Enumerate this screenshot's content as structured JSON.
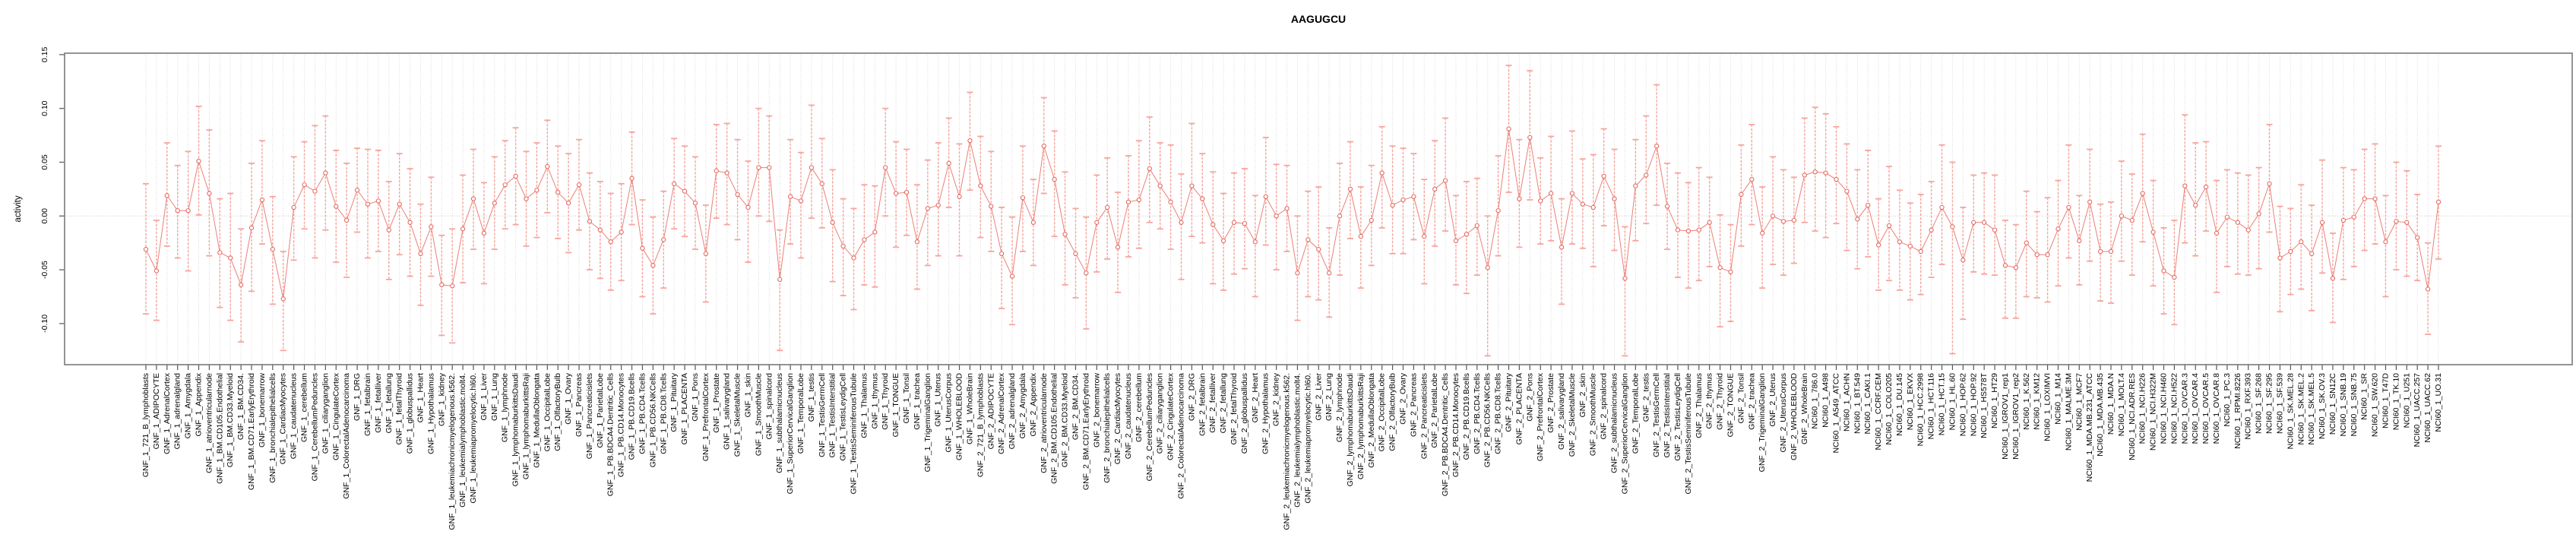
{
  "title": "AAGUGCU",
  "chart_data": {
    "type": "scatter",
    "title": "AAGUGCU",
    "xlabel": "",
    "ylabel": "activity",
    "ylim": [
      -0.138,
      0.152
    ],
    "yticks": [
      0.15,
      0.1,
      0.05,
      0.0,
      -0.05,
      -0.1
    ],
    "ytick_labels": [
      "0.15",
      "0.10",
      "0.05",
      "0.00",
      "-0.05",
      "-0.10"
    ],
    "grid": {
      "vertical_dotted_per_category": true,
      "horizontal_dotted_at_zero": true
    },
    "legend": "none",
    "colors": {
      "point": "#e5695f",
      "line": "#ec7f76",
      "errorbar": "#f7a49c",
      "grid": "#d9d9d9",
      "zero_line": "#c9c9c9",
      "axis": "#7a7a7a",
      "text": "#000000"
    },
    "categories": [
      "GNF_1_721_B_lymphoblasts",
      "GNF_1_ADIPOCYTE",
      "GNF_1_AdrenalCortex",
      "GNF_1_adrenalgland",
      "GNF_1_Amygdala",
      "GNF_1_Appendix",
      "GNF_1_atrioventricularnode",
      "GNF_1_BM.CD105.Endothelial",
      "GNF_1_BM.CD33.Myeloid",
      "GNF_1_BM.CD34.",
      "GNF_1_BM.CD71.EarlyErythroid",
      "GNF_1_bonemarrow",
      "GNF_1_bronchialepithelialcells",
      "GNF_1_CardiacMyocytes",
      "GNF_1_caudatenucleus",
      "GNF_1_cerebellum",
      "GNF_1_CerebellumPeduncles",
      "GNF_1_ciliaryganglion",
      "GNF_1_CingulateCortex",
      "GNF_1_ColorectalAdenocarcinoma",
      "GNF_1_DRG",
      "GNF_1_fetalbrain",
      "GNF_1_fetalliver",
      "GNF_1_fetallung",
      "GNF_1_fetalThyroid",
      "GNF_1_globuspallidus",
      "GNF_1_Heart",
      "GNF_1_Hypothalamus",
      "GNF_1_kidney",
      "GNF_1_leukemiachronicmyelogenous.k562.",
      "GNF_1_leukemialymphoblastic.molt4.",
      "GNF_1_leukemiapromyelocytic.hl60.",
      "GNF_1_Liver",
      "GNF_1_Lung",
      "GNF_1_lymphnode",
      "GNF_1_lymphomaburkittsDaudi",
      "GNF_1_lymphomaburkittsRaji",
      "GNF_1_MedullaOblongata",
      "GNF_1_OccipitalLobe",
      "GNF_1_OlfactoryBulb",
      "GNF_1_Ovary",
      "GNF_1_Pancreas",
      "GNF_1_Pancreaticislets",
      "GNF_1_ParietalLobe",
      "GNF_1_PB.BDCA4.Dentritic_Cells",
      "GNF_1_PB.CD14.Monocytes",
      "GNF_1_PB.CD19.Bcells",
      "GNF_1_PB.CD4.Tcells",
      "GNF_1_PB.CD56.NKCells",
      "GNF_1_PB.CD8.Tcells",
      "GNF_1_Pituitary",
      "GNF_1_PLACENTA",
      "GNF_1_Pons",
      "GNF_1_PrefrontalCortex",
      "GNF_1_Prostate",
      "GNF_1_salivarygland",
      "GNF_1_SkeletalMuscle",
      "GNF_1_skin",
      "GNF_1_SmoothMuscle",
      "GNF_1_spinalcord",
      "GNF_1_subthalamicnucleus",
      "GNF_1_SuperiorCervicalGanglion",
      "GNF_1_TemporalLobe",
      "GNF_1_testis",
      "GNF_1_TestisGermCell",
      "GNF_1_TestisInterstitial",
      "GNF_1_TestisLeydigCell",
      "GNF_1_TestisSeminiferousTubule",
      "GNF_1_Thalamus",
      "GNF_1_thymus",
      "GNF_1_Thyroid",
      "GNF_1_TONGUE",
      "GNF_1_Tonsil",
      "GNF_1_trachea",
      "GNF_1_TrigeminalGanglion",
      "GNF_1_Uterus",
      "GNF_1_UterusCorpus",
      "GNF_1_WHOLEBLOOD",
      "GNF_1_WholeBrain",
      "GNF_2_721_B_lymphoblasts",
      "GNF_2_ADIPOCYTE",
      "GNF_2_AdrenalCortex",
      "GNF_2_adrenalgland",
      "GNF_2_Amygdala",
      "GNF_2_Appendix",
      "GNF_2_atrioventricularnode",
      "GNF_2_BM.CD105.Endothelial",
      "GNF_2_BM.CD33.Myeloid",
      "GNF_2_BM.CD34.",
      "GNF_2_BM.CD71.EarlyErythroid",
      "GNF_2_bonemarrow",
      "GNF_2_bronchialepithelialcells",
      "GNF_2_CardiacMyocytes",
      "GNF_2_caudatenucleus",
      "GNF_2_cerebellum",
      "GNF_2_CerebellumPeduncles",
      "GNF_2_ciliaryganglion",
      "GNF_2_CingulateCortex",
      "GNF_2_ColorectalAdenocarcinoma",
      "GNF_2_DRG",
      "GNF_2_fetalbrain",
      "GNF_2_fetalliver",
      "GNF_2_fetallung",
      "GNF_2_fetalThyroid",
      "GNF_2_globuspallidus",
      "GNF_2_Heart",
      "GNF_2_Hypothalamus",
      "GNF_2_kidney",
      "GNF_2_leukemiachronicmyelogenous.k562.",
      "GNF_2_leukemialymphoblastic.molt4.",
      "GNF_2_leukemiapromyelocytic.hl60.",
      "GNF_2_Liver",
      "GNF_2_Lung",
      "GNF_2_lymphnode",
      "GNF_2_lymphomaburkittsDaudi",
      "GNF_2_lymphomaburkittsRaji",
      "GNF_2_MedullaOblongata",
      "GNF_2_OccipitalLobe",
      "GNF_2_OlfactoryBulb",
      "GNF_2_Ovary",
      "GNF_2_Pancreas",
      "GNF_2_Pancreaticislets",
      "GNF_2_ParietalLobe",
      "GNF_2_PB.BDCA4.Dentritic_Cells",
      "GNF_2_PB.CD14.Monocytes",
      "GNF_2_PB.CD19.Bcells",
      "GNF_2_PB.CD4.Tcells",
      "GNF_2_PB.CD56.NKCells",
      "GNF_2_PB.CD8.Tcells",
      "GNF_2_Pituitary",
      "GNF_2_PLACENTA",
      "GNF_2_Pons",
      "GNF_2_PrefrontalCortex",
      "GNF_2_Prostate",
      "GNF_2_salivarygland",
      "GNF_2_SkeletalMuscle",
      "GNF_2_skin",
      "GNF_2_SmoothMuscle",
      "GNF_2_spinalcord",
      "GNF_2_subthalamicnucleus",
      "GNF_2_SuperiorCervicalGanglion",
      "GNF_2_TemporalLobe",
      "GNF_2_testis",
      "GNF_2_TestisGermCell",
      "GNF_2_TestisInterstitial",
      "GNF_2_TestisLeydigCell",
      "GNF_2_TestisSeminiferousTubule",
      "GNF_2_Thalamus",
      "GNF_2_thymus",
      "GNF_2_Thyroid",
      "GNF_2_TONGUE",
      "GNF_2_Tonsil",
      "GNF_2_trachea",
      "GNF_2_TrigeminalGanglion",
      "GNF_2_Uterus",
      "GNF_2_UterusCorpus",
      "GNF_2_WHOLEBLOOD",
      "GNF_2_WholeBrain",
      "NCI60_1_786.0",
      "NCI60_1_A498",
      "NCI60_1_A549_ATCC",
      "NCI60_1_ACHN",
      "NCI60_1_BT.549",
      "NCI60_1_CAKI.1",
      "NCI60_1_CCRF.CEM",
      "NCI60_1_COLO205",
      "NCI60_1_DU.145",
      "NCI60_1_EKVX",
      "NCI60_1_HCC.2998",
      "NCI60_1_HCT.116",
      "NCI60_1_HCT.15",
      "NCI60_1_HL.60",
      "NCI60_1_HOP.62",
      "NCI60_1_HOP.92",
      "NCI60_1_HS578T",
      "NCI60_1_HT29",
      "NCI60_1_IGROV1_rep1",
      "NCI60_1_IGROV1_rep2",
      "NCI60_1_K.562",
      "NCI60_1_KM12",
      "NCI60_1_LOXIMVI",
      "NCI60_1_M14",
      "NCI60_1_MALME.3M",
      "NCI60_1_MCF7",
      "NCI60_1_MDA.MB.231_ATCC",
      "NCI60_1_MDA.MB.435",
      "NCI60_1_MDA.N",
      "NCI60_1_MOLT.4",
      "NCI60_1_NCI.ADR.RES",
      "NCI60_1_NCI.H226",
      "NCI60_1_NCI.H322M",
      "NCI60_1_NCI.H460",
      "NCI60_1_NCI.H522",
      "NCI60_1_OVCAR.3",
      "NCI60_1_OVCAR.4",
      "NCI60_1_OVCAR.5",
      "NCI60_1_OVCAR.8",
      "NCI60_1_PC.3",
      "NCI60_1_RPMI.8226",
      "NCI60_1_RXF.393",
      "NCI60_1_SF.268",
      "NCI60_1_SF.295",
      "NCI60_1_SF.539",
      "NCI60_1_SK.MEL.28",
      "NCI60_1_SK.MEL.2",
      "NCI60_1_SK.MEL.5",
      "NCI60_1_SK.OV.3",
      "NCI60_1_SN12C",
      "NCI60_1_SNB.19",
      "NCI60_1_SNB.75",
      "NCI60_1_SR",
      "NCI60_1_SW.620",
      "NCI60_1_T47D",
      "NCI60_1_TK.10",
      "NCI60_1_U251",
      "NCI60_1_UACC.257",
      "NCI60_1_UACC.62",
      "NCI60_1_UO.31"
    ],
    "values": [
      -0.031,
      -0.051,
      0.019,
      0.005,
      0.005,
      0.051,
      0.021,
      -0.034,
      -0.039,
      -0.064,
      -0.011,
      0.015,
      -0.031,
      -0.077,
      0.008,
      0.029,
      0.023,
      0.04,
      0.009,
      -0.004,
      0.024,
      0.011,
      0.014,
      -0.013,
      0.011,
      -0.006,
      -0.035,
      -0.01,
      -0.064,
      -0.065,
      -0.012,
      0.016,
      -0.016,
      0.012,
      0.029,
      0.037,
      0.016,
      0.024,
      0.046,
      0.022,
      0.012,
      0.029,
      -0.005,
      -0.013,
      -0.024,
      -0.015,
      0.035,
      -0.03,
      -0.046,
      -0.022,
      0.03,
      0.023,
      0.012,
      -0.035,
      0.042,
      0.04,
      0.02,
      0.008,
      0.045,
      0.045,
      -0.059,
      0.018,
      0.014,
      0.045,
      0.03,
      -0.006,
      -0.028,
      -0.039,
      -0.022,
      -0.015,
      0.045,
      0.021,
      0.022,
      -0.024,
      0.007,
      0.01,
      0.049,
      0.018,
      0.07,
      0.028,
      0.009,
      -0.035,
      -0.056,
      0.017,
      -0.006,
      0.065,
      0.034,
      -0.017,
      -0.035,
      -0.053,
      -0.006,
      0.008,
      -0.029,
      0.013,
      0.015,
      0.044,
      0.028,
      0.013,
      -0.006,
      0.028,
      0.016,
      -0.008,
      -0.023,
      -0.006,
      -0.007,
      -0.024,
      0.018,
      0.0,
      0.007,
      -0.053,
      -0.022,
      -0.031,
      -0.053,
      0.0,
      0.025,
      -0.019,
      -0.004,
      0.04,
      0.01,
      0.015,
      0.018,
      -0.019,
      0.025,
      0.033,
      -0.023,
      -0.017,
      -0.009,
      -0.048,
      0.005,
      0.081,
      0.016,
      0.073,
      0.014,
      0.021,
      -0.029,
      0.021,
      0.011,
      0.008,
      0.037,
      0.016,
      -0.058,
      0.028,
      0.038,
      0.065,
      0.009,
      -0.013,
      -0.014,
      -0.013,
      -0.006,
      -0.048,
      -0.052,
      0.02,
      0.034,
      -0.016,
      0.0,
      -0.005,
      -0.004,
      0.038,
      0.041,
      0.04,
      0.034,
      0.023,
      -0.003,
      0.01,
      -0.027,
      -0.009,
      -0.024,
      -0.028,
      -0.033,
      -0.013,
      0.008,
      -0.01,
      -0.041,
      -0.006,
      -0.006,
      -0.013,
      -0.046,
      -0.048,
      -0.025,
      -0.036,
      -0.036,
      -0.012,
      0.008,
      -0.023,
      0.013,
      -0.033,
      -0.033,
      0.0,
      -0.004,
      0.021,
      -0.015,
      -0.051,
      -0.057,
      0.028,
      0.01,
      0.027,
      -0.016,
      -0.001,
      -0.006,
      -0.013,
      0.002,
      0.03,
      -0.039,
      -0.033,
      -0.024,
      -0.035,
      -0.006,
      -0.058,
      -0.004,
      -0.001,
      0.016,
      0.016,
      -0.024,
      -0.005,
      -0.006,
      -0.02,
      -0.068,
      0.013
    ],
    "err_up": [
      0.061,
      0.047,
      0.049,
      0.042,
      0.055,
      0.051,
      0.059,
      0.05,
      0.06,
      0.052,
      0.06,
      0.055,
      0.049,
      0.044,
      0.047,
      0.04,
      0.061,
      0.053,
      0.052,
      0.053,
      0.039,
      0.051,
      0.047,
      0.045,
      0.047,
      0.05,
      0.046,
      0.046,
      0.046,
      0.053,
      0.05,
      0.046,
      0.047,
      0.043,
      0.041,
      0.045,
      0.044,
      0.044,
      0.043,
      0.043,
      0.046,
      0.042,
      0.045,
      0.045,
      0.045,
      0.045,
      0.043,
      0.045,
      0.045,
      0.045,
      0.042,
      0.042,
      0.043,
      0.045,
      0.043,
      0.046,
      0.051,
      0.043,
      0.055,
      0.048,
      0.046,
      0.053,
      0.045,
      0.058,
      0.042,
      0.049,
      0.044,
      0.046,
      0.051,
      0.043,
      0.055,
      0.048,
      0.04,
      0.053,
      0.045,
      0.058,
      0.042,
      0.049,
      0.045,
      0.046,
      0.051,
      0.043,
      0.055,
      0.048,
      0.04,
      0.045,
      0.045,
      0.058,
      0.042,
      0.052,
      0.044,
      0.046,
      0.051,
      0.043,
      0.055,
      0.048,
      0.04,
      0.053,
      0.045,
      0.058,
      0.042,
      0.049,
      0.044,
      0.046,
      0.051,
      0.043,
      0.055,
      0.048,
      0.04,
      0.053,
      0.045,
      0.058,
      0.042,
      0.049,
      0.044,
      0.046,
      0.051,
      0.043,
      0.055,
      0.048,
      0.04,
      0.053,
      0.045,
      0.058,
      0.042,
      0.049,
      0.044,
      0.048,
      0.051,
      0.059,
      0.055,
      0.062,
      0.04,
      0.053,
      0.045,
      0.058,
      0.042,
      0.049,
      0.044,
      0.046,
      0.048,
      0.043,
      0.055,
      0.057,
      0.04,
      0.053,
      0.045,
      0.058,
      0.042,
      0.049,
      0.044,
      0.046,
      0.051,
      0.043,
      0.055,
      0.048,
      0.04,
      0.053,
      0.06,
      0.055,
      0.049,
      0.044,
      0.046,
      0.051,
      0.043,
      0.055,
      0.048,
      0.04,
      0.053,
      0.045,
      0.058,
      0.06,
      0.049,
      0.044,
      0.046,
      0.051,
      0.042,
      0.04,
      0.048,
      0.04,
      0.053,
      0.045,
      0.058,
      0.042,
      0.049,
      0.044,
      0.046,
      0.051,
      0.043,
      0.055,
      0.048,
      0.04,
      0.053,
      0.066,
      0.058,
      0.042,
      0.049,
      0.044,
      0.046,
      0.051,
      0.043,
      0.055,
      0.048,
      0.04,
      0.053,
      0.045,
      0.058,
      0.042,
      0.049,
      0.044,
      0.046,
      0.051,
      0.043,
      0.055,
      0.048,
      0.04,
      0.043,
      0.052
    ],
    "err_dn": [
      0.06,
      0.046,
      0.047,
      0.044,
      0.056,
      0.05,
      0.058,
      0.051,
      0.058,
      0.053,
      0.059,
      0.041,
      0.051,
      0.048,
      0.049,
      0.041,
      0.062,
      0.053,
      0.052,
      0.053,
      0.039,
      0.05,
      0.047,
      0.046,
      0.047,
      0.05,
      0.048,
      0.046,
      0.047,
      0.053,
      0.05,
      0.047,
      0.047,
      0.043,
      0.041,
      0.045,
      0.044,
      0.044,
      0.043,
      0.043,
      0.046,
      0.042,
      0.045,
      0.045,
      0.045,
      0.045,
      0.043,
      0.045,
      0.045,
      0.045,
      0.042,
      0.042,
      0.043,
      0.045,
      0.044,
      0.048,
      0.042,
      0.051,
      0.045,
      0.05,
      0.066,
      0.044,
      0.053,
      0.047,
      0.041,
      0.055,
      0.046,
      0.048,
      0.042,
      0.051,
      0.045,
      0.05,
      0.04,
      0.044,
      0.053,
      0.047,
      0.041,
      0.055,
      0.046,
      0.048,
      0.042,
      0.051,
      0.045,
      0.05,
      0.04,
      0.044,
      0.053,
      0.047,
      0.041,
      0.052,
      0.046,
      0.048,
      0.042,
      0.051,
      0.045,
      0.05,
      0.04,
      0.044,
      0.053,
      0.047,
      0.041,
      0.055,
      0.046,
      0.048,
      0.042,
      0.051,
      0.045,
      0.05,
      0.04,
      0.044,
      0.053,
      0.047,
      0.041,
      0.055,
      0.046,
      0.048,
      0.042,
      0.051,
      0.045,
      0.05,
      0.04,
      0.044,
      0.053,
      0.047,
      0.041,
      0.055,
      0.046,
      0.082,
      0.042,
      0.059,
      0.045,
      0.058,
      0.04,
      0.044,
      0.053,
      0.047,
      0.041,
      0.055,
      0.046,
      0.048,
      0.072,
      0.051,
      0.045,
      0.055,
      0.04,
      0.044,
      0.053,
      0.047,
      0.041,
      0.055,
      0.046,
      0.048,
      0.042,
      0.051,
      0.045,
      0.05,
      0.04,
      0.044,
      0.055,
      0.06,
      0.041,
      0.055,
      0.046,
      0.048,
      0.042,
      0.051,
      0.045,
      0.05,
      0.04,
      0.044,
      0.053,
      0.118,
      0.055,
      0.046,
      0.048,
      0.042,
      0.049,
      0.047,
      0.05,
      0.04,
      0.044,
      0.053,
      0.047,
      0.041,
      0.055,
      0.046,
      0.048,
      0.042,
      0.051,
      0.045,
      0.05,
      0.04,
      0.044,
      0.053,
      0.047,
      0.041,
      0.055,
      0.046,
      0.048,
      0.042,
      0.051,
      0.045,
      0.05,
      0.04,
      0.044,
      0.053,
      0.047,
      0.041,
      0.055,
      0.046,
      0.048,
      0.042,
      0.051,
      0.045,
      0.05,
      0.04,
      0.042,
      0.053
    ]
  }
}
